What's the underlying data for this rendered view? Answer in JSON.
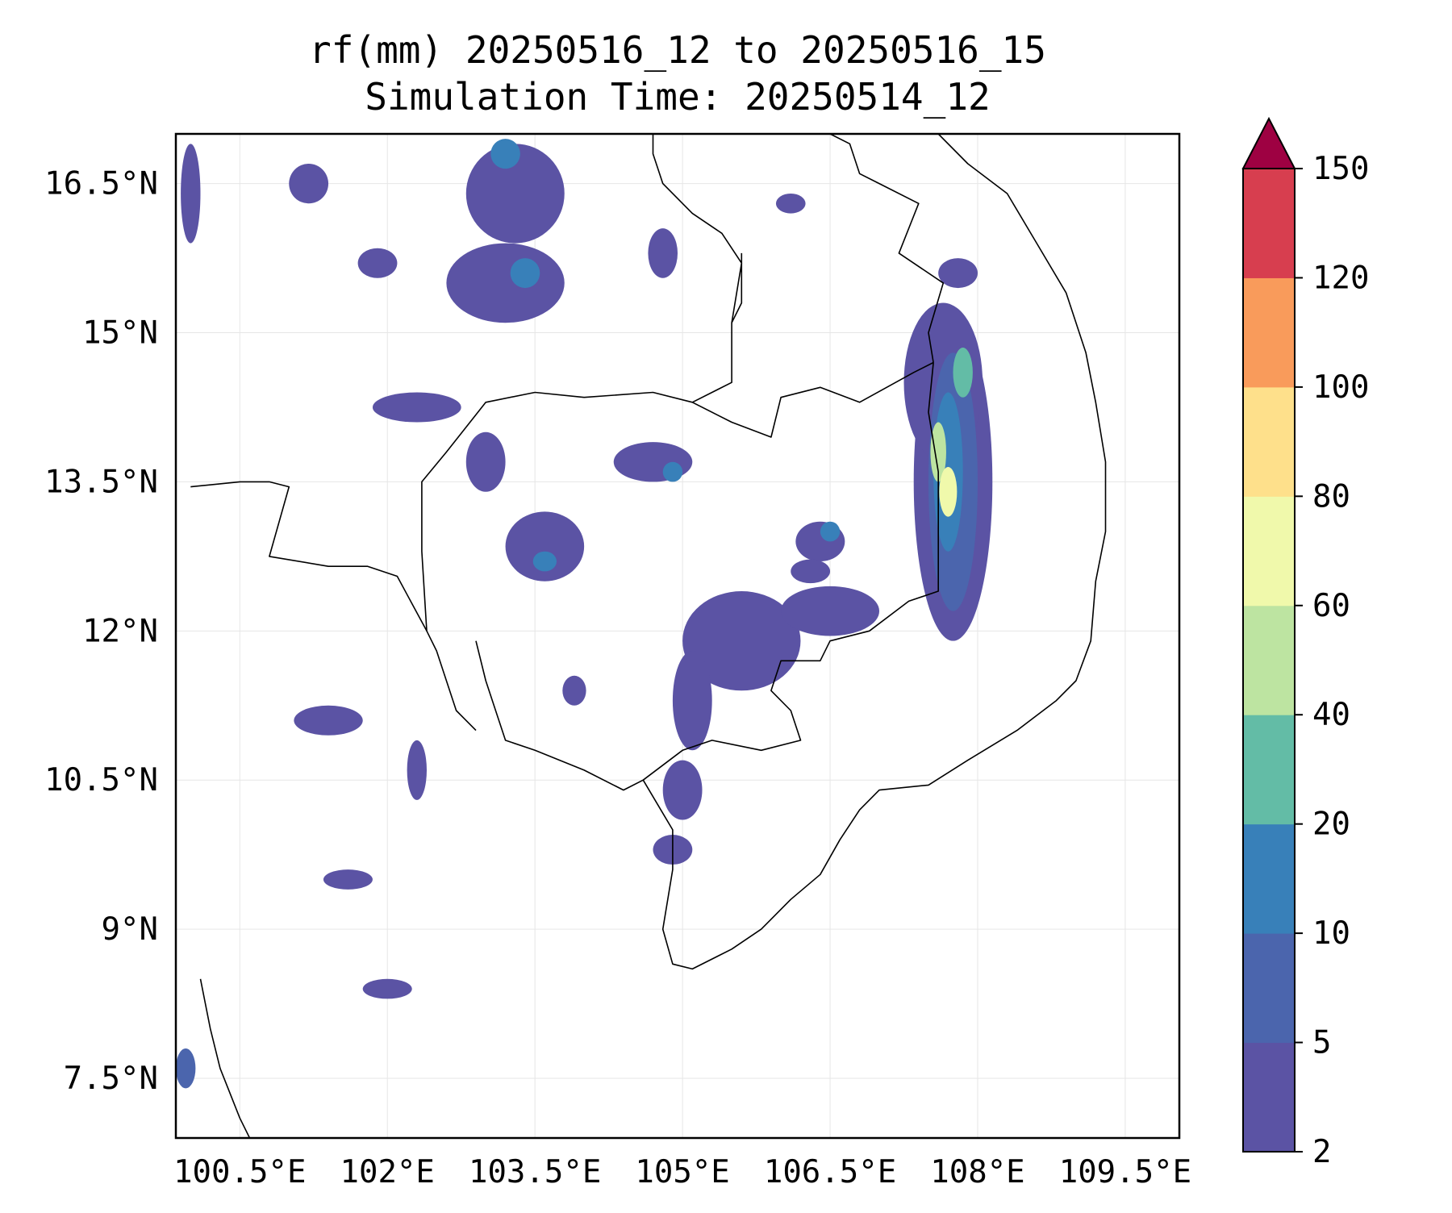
{
  "title": {
    "line1": "rf(mm) 20250516_12 to 20250516_15",
    "line2": "Simulation Time: 20250514_12"
  },
  "map": {
    "extent": {
      "lon": [
        99.85,
        110.05
      ],
      "lat": [
        6.9,
        17.0
      ]
    },
    "x_ticks": [
      {
        "value": 100.5,
        "label": "100.5°E"
      },
      {
        "value": 102.0,
        "label": "102°E"
      },
      {
        "value": 103.5,
        "label": "103.5°E"
      },
      {
        "value": 105.0,
        "label": "105°E"
      },
      {
        "value": 106.5,
        "label": "106.5°E"
      },
      {
        "value": 108.0,
        "label": "108°E"
      },
      {
        "value": 109.5,
        "label": "109.5°E"
      }
    ],
    "y_ticks": [
      {
        "value": 16.5,
        "label": "16.5°N"
      },
      {
        "value": 15.0,
        "label": "15°N"
      },
      {
        "value": 13.5,
        "label": "13.5°N"
      },
      {
        "value": 12.0,
        "label": "12°N"
      },
      {
        "value": 10.5,
        "label": "10.5°N"
      },
      {
        "value": 9.0,
        "label": "9°N"
      },
      {
        "value": 7.5,
        "label": "7.5°N"
      }
    ],
    "grid": true
  },
  "colorbar": {
    "levels": [
      2,
      5,
      10,
      20,
      40,
      60,
      80,
      100,
      120,
      150
    ],
    "tick_labels": [
      "2",
      "5",
      "10",
      "20",
      "40",
      "60",
      "80",
      "100",
      "120",
      "150"
    ],
    "colors": [
      "#5b53a4",
      "#4b65ad",
      "#3880b9",
      "#63bca6",
      "#bde4a1",
      "#f0f9ab",
      "#fee08b",
      "#f99b5b",
      "#d73e4f"
    ],
    "extend_color": "#9e0142",
    "extend": "max"
  },
  "rain_areas": [
    {
      "lon": 107.75,
      "lat": 13.5,
      "rx": 0.4,
      "ry": 1.6,
      "level": 0
    },
    {
      "lon": 107.65,
      "lat": 14.5,
      "rx": 0.4,
      "ry": 0.8,
      "level": 0
    },
    {
      "lon": 107.75,
      "lat": 13.5,
      "rx": 0.25,
      "ry": 1.3,
      "level": 1
    },
    {
      "lon": 107.7,
      "lat": 13.6,
      "rx": 0.15,
      "ry": 0.8,
      "level": 2
    },
    {
      "lon": 107.6,
      "lat": 13.8,
      "rx": 0.08,
      "ry": 0.3,
      "level": 4
    },
    {
      "lon": 107.7,
      "lat": 13.4,
      "rx": 0.09,
      "ry": 0.25,
      "level": 5
    },
    {
      "lon": 107.85,
      "lat": 14.6,
      "rx": 0.1,
      "ry": 0.25,
      "level": 3
    },
    {
      "lon": 105.6,
      "lat": 11.9,
      "rx": 0.6,
      "ry": 0.5,
      "level": 0
    },
    {
      "lon": 106.5,
      "lat": 12.2,
      "rx": 0.5,
      "ry": 0.25,
      "level": 0
    },
    {
      "lon": 105.1,
      "lat": 11.3,
      "rx": 0.2,
      "ry": 0.5,
      "level": 0
    },
    {
      "lon": 105.0,
      "lat": 10.4,
      "rx": 0.2,
      "ry": 0.3,
      "level": 0
    },
    {
      "lon": 104.9,
      "lat": 9.8,
      "rx": 0.2,
      "ry": 0.15,
      "level": 0
    },
    {
      "lon": 106.4,
      "lat": 12.9,
      "rx": 0.25,
      "ry": 0.2,
      "level": 0
    },
    {
      "lon": 106.5,
      "lat": 13.0,
      "rx": 0.1,
      "ry": 0.1,
      "level": 2
    },
    {
      "lon": 106.3,
      "lat": 12.6,
      "rx": 0.2,
      "ry": 0.12,
      "level": 0
    },
    {
      "lon": 103.6,
      "lat": 12.85,
      "rx": 0.4,
      "ry": 0.35,
      "level": 0
    },
    {
      "lon": 103.6,
      "lat": 12.7,
      "rx": 0.12,
      "ry": 0.1,
      "level": 2
    },
    {
      "lon": 104.7,
      "lat": 13.7,
      "rx": 0.4,
      "ry": 0.2,
      "level": 0
    },
    {
      "lon": 104.9,
      "lat": 13.6,
      "rx": 0.1,
      "ry": 0.1,
      "level": 2
    },
    {
      "lon": 103.0,
      "lat": 13.7,
      "rx": 0.2,
      "ry": 0.3,
      "level": 0
    },
    {
      "lon": 103.3,
      "lat": 16.4,
      "rx": 0.5,
      "ry": 0.5,
      "level": 0
    },
    {
      "lon": 103.2,
      "lat": 15.5,
      "rx": 0.6,
      "ry": 0.4,
      "level": 0
    },
    {
      "lon": 103.4,
      "lat": 15.6,
      "rx": 0.15,
      "ry": 0.15,
      "level": 2
    },
    {
      "lon": 103.2,
      "lat": 16.8,
      "rx": 0.15,
      "ry": 0.15,
      "level": 2
    },
    {
      "lon": 102.3,
      "lat": 14.25,
      "rx": 0.45,
      "ry": 0.15,
      "level": 0
    },
    {
      "lon": 101.2,
      "lat": 16.5,
      "rx": 0.2,
      "ry": 0.2,
      "level": 0
    },
    {
      "lon": 101.9,
      "lat": 15.7,
      "rx": 0.2,
      "ry": 0.15,
      "level": 0
    },
    {
      "lon": 104.8,
      "lat": 15.8,
      "rx": 0.15,
      "ry": 0.25,
      "level": 0
    },
    {
      "lon": 101.4,
      "lat": 11.1,
      "rx": 0.35,
      "ry": 0.15,
      "level": 0
    },
    {
      "lon": 101.6,
      "lat": 9.5,
      "rx": 0.25,
      "ry": 0.1,
      "level": 0
    },
    {
      "lon": 102.0,
      "lat": 8.4,
      "rx": 0.25,
      "ry": 0.1,
      "level": 0
    },
    {
      "lon": 102.3,
      "lat": 10.6,
      "rx": 0.1,
      "ry": 0.3,
      "level": 0
    },
    {
      "lon": 103.9,
      "lat": 11.4,
      "rx": 0.12,
      "ry": 0.15,
      "level": 0
    },
    {
      "lon": 106.1,
      "lat": 16.3,
      "rx": 0.15,
      "ry": 0.1,
      "level": 0
    },
    {
      "lon": 107.8,
      "lat": 15.6,
      "rx": 0.2,
      "ry": 0.15,
      "level": 0
    },
    {
      "lon": 100.0,
      "lat": 16.4,
      "rx": 0.1,
      "ry": 0.5,
      "level": 0
    },
    {
      "lon": 99.95,
      "lat": 7.6,
      "rx": 0.1,
      "ry": 0.2,
      "level": 1
    }
  ],
  "borders": [
    [
      [
        100.0,
        13.45
      ],
      [
        100.5,
        13.5
      ],
      [
        100.8,
        13.5
      ],
      [
        101.0,
        13.45
      ],
      [
        100.8,
        12.75
      ],
      [
        101.4,
        12.65
      ],
      [
        101.8,
        12.65
      ],
      [
        102.1,
        12.55
      ],
      [
        102.4,
        12.0
      ],
      [
        102.5,
        11.8
      ],
      [
        102.7,
        11.2
      ],
      [
        102.9,
        11.0
      ]
    ],
    [
      [
        102.4,
        12.0
      ],
      [
        102.35,
        12.8
      ],
      [
        102.35,
        13.5
      ],
      [
        102.6,
        13.8
      ],
      [
        103.0,
        14.3
      ],
      [
        103.5,
        14.4
      ],
      [
        104.0,
        14.35
      ],
      [
        104.7,
        14.4
      ],
      [
        105.1,
        14.3
      ],
      [
        105.5,
        14.1
      ],
      [
        105.9,
        13.95
      ],
      [
        106.0,
        14.35
      ],
      [
        106.4,
        14.45
      ],
      [
        106.8,
        14.3
      ],
      [
        107.35,
        14.6
      ],
      [
        107.55,
        14.7
      ]
    ],
    [
      [
        107.55,
        14.7
      ],
      [
        107.5,
        14.2
      ],
      [
        107.6,
        13.6
      ],
      [
        107.6,
        13.0
      ],
      [
        107.6,
        12.4
      ],
      [
        107.3,
        12.3
      ],
      [
        106.9,
        12.0
      ],
      [
        106.5,
        11.9
      ],
      [
        106.4,
        11.7
      ],
      [
        106.0,
        11.7
      ],
      [
        105.9,
        11.4
      ],
      [
        106.1,
        11.2
      ],
      [
        106.2,
        10.9
      ],
      [
        105.8,
        10.8
      ],
      [
        105.3,
        10.9
      ],
      [
        105.0,
        10.8
      ],
      [
        104.6,
        10.5
      ]
    ],
    [
      [
        105.1,
        14.3
      ],
      [
        105.5,
        14.5
      ],
      [
        105.5,
        15.1
      ],
      [
        105.6,
        15.7
      ],
      [
        105.4,
        16.0
      ],
      [
        105.1,
        16.2
      ],
      [
        104.8,
        16.5
      ],
      [
        104.7,
        16.8
      ],
      [
        104.7,
        17.0
      ]
    ],
    [
      [
        105.5,
        15.1
      ],
      [
        105.6,
        15.3
      ],
      [
        105.6,
        15.8
      ]
    ],
    [
      [
        107.55,
        14.7
      ],
      [
        107.5,
        15.0
      ],
      [
        107.65,
        15.5
      ],
      [
        107.2,
        15.8
      ],
      [
        107.4,
        16.3
      ],
      [
        107.0,
        16.5
      ],
      [
        106.8,
        16.6
      ],
      [
        106.7,
        16.9
      ],
      [
        106.5,
        17.0
      ]
    ],
    [
      [
        107.6,
        17.0
      ],
      [
        107.9,
        16.7
      ],
      [
        108.3,
        16.4
      ],
      [
        108.6,
        15.9
      ],
      [
        108.9,
        15.4
      ],
      [
        109.1,
        14.8
      ],
      [
        109.2,
        14.3
      ],
      [
        109.3,
        13.7
      ],
      [
        109.3,
        13.0
      ],
      [
        109.2,
        12.5
      ],
      [
        109.15,
        11.9
      ],
      [
        109.0,
        11.5
      ],
      [
        108.8,
        11.3
      ],
      [
        108.4,
        11.0
      ],
      [
        107.9,
        10.7
      ],
      [
        107.5,
        10.45
      ],
      [
        107.0,
        10.4
      ],
      [
        106.8,
        10.2
      ],
      [
        106.6,
        9.9
      ],
      [
        106.4,
        9.55
      ],
      [
        106.1,
        9.3
      ],
      [
        105.8,
        9.0
      ],
      [
        105.5,
        8.8
      ],
      [
        105.1,
        8.6
      ],
      [
        104.9,
        8.65
      ],
      [
        104.8,
        9.0
      ],
      [
        104.9,
        9.6
      ],
      [
        104.9,
        10.0
      ],
      [
        104.6,
        10.5
      ],
      [
        104.4,
        10.4
      ],
      [
        104.0,
        10.6
      ],
      [
        103.5,
        10.8
      ],
      [
        103.2,
        10.9
      ],
      [
        103.0,
        11.5
      ],
      [
        102.9,
        11.9
      ]
    ],
    [
      [
        100.1,
        8.5
      ],
      [
        100.2,
        8.0
      ],
      [
        100.3,
        7.6
      ],
      [
        100.5,
        7.1
      ],
      [
        100.6,
        6.9
      ]
    ]
  ]
}
